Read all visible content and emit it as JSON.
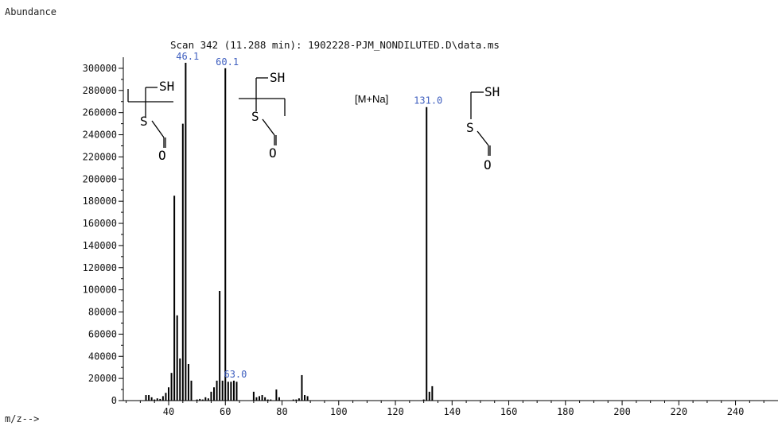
{
  "header": {
    "abundance_label": "Abundance",
    "scan_title": "Scan 342 (11.288 min): 1902228-PJM_NONDILUTED.D\\data.ms",
    "xaxis_label": "m/z-->"
  },
  "annotations": {
    "adduct_label": "[M+Na]",
    "peak_labels": [
      {
        "text": "46.1",
        "x": 46.1,
        "y": 305000
      },
      {
        "text": "60.1",
        "x": 60.1,
        "y": 300000
      },
      {
        "text": "131.0",
        "x": 131.0,
        "y": 265000
      },
      {
        "text": "63.0",
        "x": 63.0,
        "y": 18000
      }
    ],
    "structure_atoms": [
      "SH",
      "S",
      "O",
      "SH",
      "S",
      "O",
      "SH",
      "S",
      "O"
    ]
  },
  "colors": {
    "peak_label": "#3f5fbf",
    "axis": "#000000",
    "bar": "#000000"
  },
  "chart_data": {
    "type": "bar",
    "title": "Scan 342 (11.288 min): 1902228-PJM_NONDILUTED.D\\data.ms",
    "xlabel": "m/z-->",
    "ylabel": "Abundance",
    "xlim": [
      24,
      255
    ],
    "ylim": [
      0,
      310000
    ],
    "xticks": [
      40,
      60,
      80,
      100,
      120,
      140,
      160,
      180,
      200,
      220,
      240
    ],
    "yticks": [
      0,
      20000,
      40000,
      60000,
      80000,
      100000,
      120000,
      140000,
      160000,
      180000,
      200000,
      220000,
      240000,
      260000,
      280000,
      300000
    ],
    "grid": false,
    "series": [
      {
        "x": [
          32,
          33,
          34,
          35,
          36,
          37,
          38,
          39,
          40,
          41,
          42,
          43,
          44,
          45,
          46,
          47,
          48,
          50,
          51,
          52,
          53,
          54,
          55,
          56,
          57,
          58,
          59,
          60,
          61,
          62,
          63,
          64,
          70,
          71,
          72,
          73,
          74,
          75,
          76,
          78,
          79,
          84,
          85,
          86,
          87,
          88,
          89,
          130,
          131,
          132,
          133
        ],
        "values": [
          5000,
          5000,
          3000,
          1000,
          2000,
          1500,
          4000,
          7000,
          12000,
          25000,
          185000,
          77000,
          38000,
          250000,
          305000,
          33000,
          18000,
          1000,
          1500,
          1000,
          3000,
          2000,
          8000,
          12000,
          18000,
          99000,
          18000,
          300000,
          17000,
          17000,
          18000,
          17000,
          8000,
          3000,
          4000,
          5000,
          3000,
          1000,
          1000,
          10000,
          3000,
          1000,
          1000,
          2000,
          23000,
          5000,
          4000,
          1000,
          265000,
          8000,
          13000
        ]
      }
    ]
  }
}
